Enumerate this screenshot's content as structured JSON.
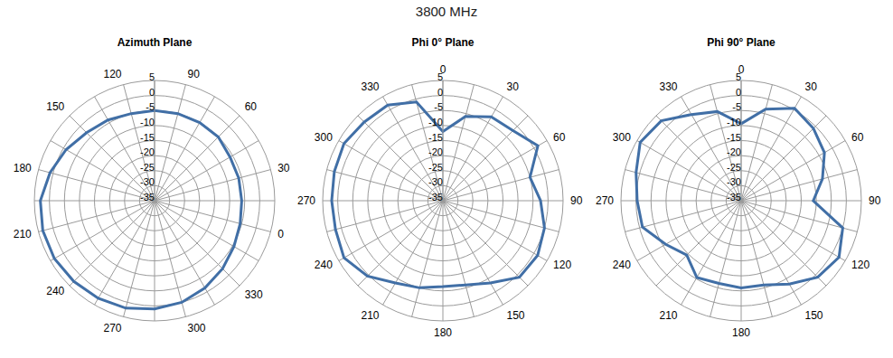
{
  "title": "3800 MHz",
  "chart_data": [
    {
      "type": "radar",
      "title": "Azimuth Plane",
      "categories": [
        0,
        null,
        30,
        null,
        60,
        null,
        90,
        null,
        120,
        null,
        150,
        null,
        180,
        null,
        210,
        null,
        240,
        null,
        270,
        null,
        300,
        null,
        330,
        null
      ],
      "values": [
        -6,
        -6,
        -5,
        -5,
        -5,
        -5,
        -5,
        -4,
        -3,
        -1,
        1,
        3,
        3.5,
        3.5,
        3,
        2.5,
        2,
        1,
        0,
        -1.5,
        -3,
        -4.5,
        -5.5,
        -6
      ],
      "color": "#416fa6",
      "ylim": [
        -35,
        5
      ],
      "yticks": [
        -35,
        -30,
        -25,
        -20,
        -15,
        -10,
        -5,
        0,
        5
      ],
      "grid": true
    },
    {
      "type": "radar",
      "title": "Phi 0° Plane",
      "categories": [
        0,
        null,
        30,
        null,
        60,
        null,
        90,
        null,
        120,
        null,
        150,
        null,
        180,
        null,
        210,
        null,
        240,
        null,
        270,
        null,
        300,
        null,
        330,
        null
      ],
      "values": [
        -12,
        -6,
        -2.8,
        -2,
        1.5,
        -5,
        -2.5,
        0,
        1.4,
        1,
        -3.4,
        -6,
        -6.4,
        -5,
        -3.4,
        0.5,
        3,
        2,
        2,
        2.4,
        3,
        2,
        1.7,
        -1
      ],
      "color": "#416fa6",
      "ylim": [
        -35,
        5
      ],
      "yticks": [
        -35,
        -30,
        -25,
        -20,
        -15,
        -10,
        -5,
        0,
        5
      ],
      "grid": true
    },
    {
      "type": "radar",
      "title": "Phi 90° Plane",
      "categories": [
        0,
        null,
        30,
        null,
        60,
        null,
        90,
        null,
        120,
        null,
        150,
        null,
        180,
        null,
        210,
        null,
        240,
        null,
        270,
        null,
        300,
        null,
        330,
        null
      ],
      "values": [
        -9.4,
        -3.5,
        0.5,
        -1,
        -3,
        -7,
        -11,
        0,
        2.6,
        1,
        -3,
        -6,
        -6,
        -6.5,
        -5.5,
        -9.4,
        -6,
        -1,
        -0.4,
        1.2,
        3.8,
        2.6,
        -1.9,
        -4.3
      ],
      "color": "#416fa6",
      "ylim": [
        -35,
        5
      ],
      "yticks": [
        -35,
        -30,
        -25,
        -20,
        -15,
        -10,
        -5,
        0,
        5
      ],
      "grid": true
    }
  ]
}
